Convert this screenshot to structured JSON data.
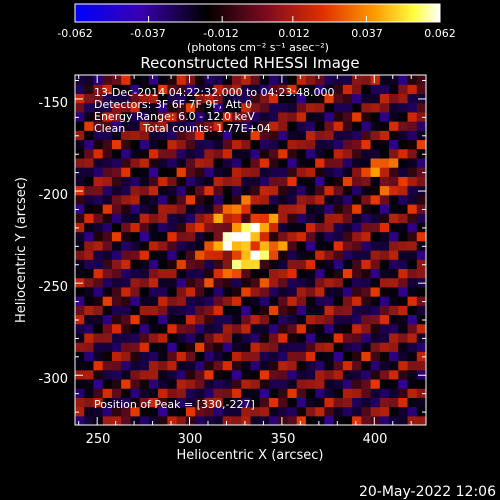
{
  "colorbar": {
    "tick_labels": [
      "-0.062",
      "-0.037",
      "-0.012",
      "0.012",
      "0.037",
      "0.062"
    ],
    "tick_values": [
      -0.062,
      -0.037,
      -0.012,
      0.012,
      0.037,
      0.062
    ],
    "range": [
      -0.062,
      0.062
    ],
    "units": "(photons cm⁻² s⁻¹ asec⁻²)",
    "colors": [
      "#0000ff",
      "#3a00b0",
      "#000000",
      "#7a0a20",
      "#e03000",
      "#ff9a00",
      "#ffff40",
      "#ffffff"
    ]
  },
  "chart_data": {
    "type": "heatmap",
    "title": "Reconstructed RHESSI Image",
    "xlabel": "Heliocentric X (arcsec)",
    "ylabel": "Heliocentric Y (arcsec)",
    "xlim": [
      238,
      428
    ],
    "ylim": [
      -327,
      -137
    ],
    "x_ticks": [
      250,
      300,
      350,
      400
    ],
    "x_tick_labels": [
      "250",
      "300",
      "350",
      "400"
    ],
    "y_ticks": [
      -150,
      -200,
      -250,
      -300
    ],
    "y_tick_labels": [
      "-150",
      "-200",
      "-250",
      "-300"
    ],
    "peak": {
      "x": 330,
      "y": -227,
      "value": 0.062
    },
    "secondary_source": {
      "x": 405,
      "y": -191,
      "value": 0.03
    },
    "annotations": {
      "time_range": "13-Dec-2014 04:22:32.000 to 04:23:48.000",
      "detectors": "Detectors: 3F 6F 7F 9F, Att 0",
      "energy_range": "Energy Range: 6.0 - 12.0 keV",
      "clean_label": "Clean",
      "total_counts": "Total counts: 1.77E+04",
      "position_of_peak": "Position of Peak = [330,-227]"
    }
  },
  "footer": {
    "date_stamp": "20-May-2022 12:06"
  }
}
